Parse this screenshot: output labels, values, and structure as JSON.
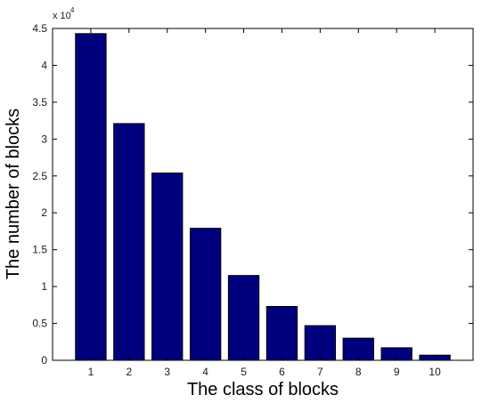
{
  "chart_data": {
    "type": "bar",
    "categories": [
      "1",
      "2",
      "3",
      "4",
      "5",
      "6",
      "7",
      "8",
      "9",
      "10"
    ],
    "values": [
      44300,
      32100,
      25400,
      17900,
      11500,
      7300,
      4700,
      3000,
      1700,
      700
    ],
    "xlabel": "The class of blocks",
    "ylabel": "The number of blocks",
    "ylim": [
      0,
      45000
    ],
    "xlim": [
      0,
      11
    ],
    "y_ticks": [
      0,
      5000,
      10000,
      15000,
      20000,
      25000,
      30000,
      35000,
      40000,
      45000
    ],
    "y_tick_labels": [
      "0",
      "0.5",
      "1",
      "1.5",
      "2",
      "2.5",
      "3",
      "3.5",
      "4",
      "4.5"
    ],
    "y_multiplier_base": "x 10",
    "y_multiplier_exponent": "4",
    "grid": false,
    "colors": {
      "bar": "#00007f",
      "bar_edge": "#000000",
      "axes": "#000000"
    }
  }
}
